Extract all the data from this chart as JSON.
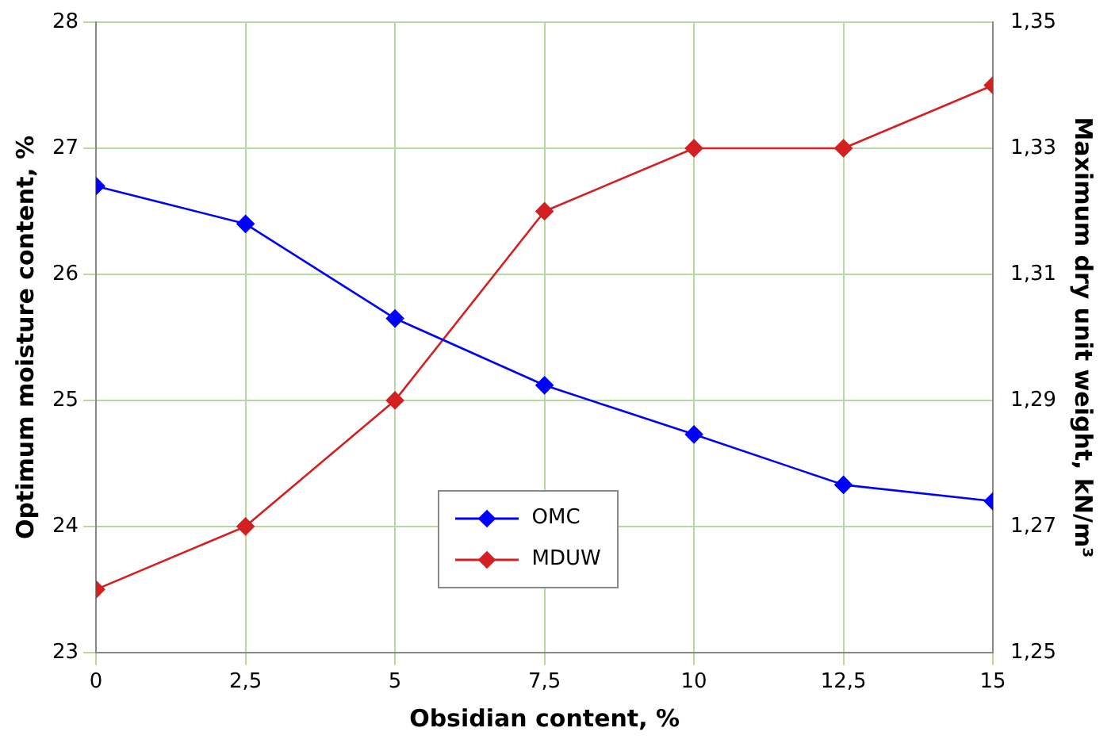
{
  "chart_data": {
    "type": "line",
    "xlabel": "Obsidian content, %",
    "ylabel": "Optimum moisture content, %",
    "y2label": "Maximum dry unit weight, kN/m³",
    "x": [
      0,
      2.5,
      5,
      7.5,
      10,
      12.5,
      15
    ],
    "series": [
      {
        "name": "OMC",
        "color": "#0000ff",
        "values": [
          26.7,
          26.4,
          25.65,
          25.12,
          24.73,
          24.33,
          24.2
        ]
      },
      {
        "name": "MDUW",
        "color": "#d42020",
        "axis": "y2",
        "values": [
          1.26,
          1.27,
          1.29,
          1.32,
          1.33,
          1.33,
          1.34
        ]
      }
    ],
    "xlim": [
      0,
      15
    ],
    "xticks": [
      0,
      {
        "value": 2.5,
        "label": "2,5"
      },
      5,
      {
        "value": 7.5,
        "label": "7,5"
      },
      10,
      {
        "value": 12.5,
        "label": "12,5"
      },
      15
    ],
    "ylim": [
      23,
      28
    ],
    "yticks": [
      23,
      24,
      25,
      26,
      27,
      28
    ],
    "y2lim": [
      1.25,
      1.35
    ],
    "y2ticks": [
      {
        "value": 1.25,
        "label": "1,25"
      },
      {
        "value": 1.27,
        "label": "1,27"
      },
      {
        "value": 1.29,
        "label": "1,29"
      },
      {
        "value": 1.31,
        "label": "1,31"
      },
      {
        "value": 1.33,
        "label": "1,33"
      },
      {
        "value": 1.35,
        "label": "1,35"
      }
    ],
    "grid": true,
    "legend": "bottom",
    "marker": "diamond",
    "line_style": "solid"
  }
}
